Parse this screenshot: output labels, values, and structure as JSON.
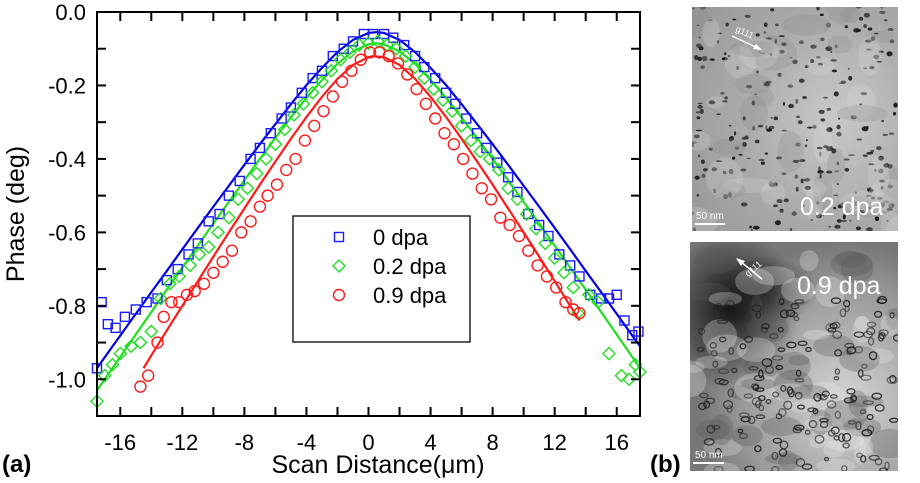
{
  "panel_labels": {
    "a": "(a)",
    "b": "(b)"
  },
  "chart_data": {
    "type": "scatter",
    "xlabel": "Scan Distance(μm)",
    "ylabel": "Phase (deg)",
    "xlim": [
      -17.5,
      17.5
    ],
    "ylim": [
      -1.1,
      0.0
    ],
    "xticks": [
      -16,
      -12,
      -8,
      -4,
      0,
      4,
      8,
      12,
      16
    ],
    "xtick_labels": [
      "-16",
      "-12",
      "-8",
      "-4",
      "0",
      "4",
      "8",
      "12",
      "16"
    ],
    "yticks": [
      0.0,
      -0.2,
      -0.4,
      -0.6,
      -0.8,
      -1.0
    ],
    "ytick_labels": [
      "0.0",
      "-0.2",
      "-0.4",
      "-0.6",
      "-0.8",
      "-1.0"
    ],
    "grid": false,
    "legend_position": "center",
    "series": [
      {
        "name": "0 dpa",
        "marker": "square",
        "color": "#1a1aff",
        "fit_color": "#0000e0",
        "x": [
          -17.5,
          -17.2,
          -16.8,
          -16.3,
          -15.7,
          -15,
          -14.3,
          -13.6,
          -13,
          -12.3,
          -11.6,
          -11,
          -10.3,
          -9.6,
          -9,
          -8.3,
          -7.6,
          -7,
          -6.3,
          -5.6,
          -5,
          -4.3,
          -3.6,
          -3,
          -2.3,
          -1.6,
          -1,
          -0.3,
          0.3,
          1,
          1.6,
          2.3,
          3,
          3.6,
          4.3,
          5,
          5.6,
          6.3,
          7,
          7.6,
          8.3,
          9,
          9.6,
          10.3,
          11,
          11.6,
          12.3,
          13,
          13.6,
          14.3,
          15,
          15.5,
          16,
          16.5,
          17,
          17.4
        ],
        "y": [
          -0.97,
          -0.79,
          -0.85,
          -0.86,
          -0.83,
          -0.81,
          -0.79,
          -0.78,
          -0.73,
          -0.7,
          -0.66,
          -0.63,
          -0.57,
          -0.55,
          -0.5,
          -0.46,
          -0.4,
          -0.37,
          -0.33,
          -0.29,
          -0.26,
          -0.22,
          -0.18,
          -0.16,
          -0.12,
          -0.1,
          -0.08,
          -0.06,
          -0.06,
          -0.06,
          -0.07,
          -0.09,
          -0.12,
          -0.15,
          -0.18,
          -0.22,
          -0.25,
          -0.29,
          -0.33,
          -0.37,
          -0.41,
          -0.45,
          -0.49,
          -0.55,
          -0.58,
          -0.61,
          -0.66,
          -0.69,
          -0.72,
          -0.77,
          -0.78,
          -0.78,
          -0.77,
          -0.84,
          -0.88,
          -0.87
        ],
        "fit_x": [
          -17.5,
          -17,
          -16,
          -15,
          -14,
          -13,
          -12,
          -11,
          -10,
          -9,
          -8,
          -7,
          -6,
          -5,
          -4,
          -3,
          -2,
          -1,
          0,
          0.5,
          1,
          2,
          3,
          4,
          5,
          6,
          7,
          8,
          9,
          10,
          11,
          12,
          13,
          14,
          15,
          16,
          17,
          17.5
        ],
        "fit_y": [
          -0.97,
          -0.94,
          -0.881,
          -0.822,
          -0.763,
          -0.705,
          -0.646,
          -0.588,
          -0.53,
          -0.473,
          -0.416,
          -0.36,
          -0.305,
          -0.251,
          -0.199,
          -0.152,
          -0.109,
          -0.076,
          -0.057,
          -0.055,
          -0.057,
          -0.076,
          -0.109,
          -0.152,
          -0.199,
          -0.251,
          -0.305,
          -0.36,
          -0.416,
          -0.473,
          -0.53,
          -0.588,
          -0.646,
          -0.705,
          -0.763,
          -0.822,
          -0.881,
          -0.91
        ]
      },
      {
        "name": "0.2 dpa",
        "marker": "diamond",
        "color": "#22dd22",
        "fit_color": "#22dd22",
        "x": [
          -17.5,
          -17,
          -16.5,
          -16,
          -15.3,
          -14.7,
          -14,
          -13.4,
          -12.8,
          -12.2,
          -11.5,
          -10.9,
          -10.3,
          -9.7,
          -9,
          -8.4,
          -7.8,
          -7.2,
          -6.6,
          -6,
          -5.4,
          -4.8,
          -4.2,
          -3.6,
          -3,
          -2.4,
          -1.8,
          -1.2,
          -0.6,
          0,
          0.6,
          1.2,
          1.8,
          2.4,
          3,
          3.6,
          4.2,
          4.8,
          5.4,
          6,
          6.6,
          7.2,
          7.8,
          8.4,
          9,
          9.6,
          10.2,
          10.8,
          11.4,
          12,
          12.6,
          13.2,
          13.5,
          14.2,
          14.8,
          15.5,
          16.3,
          16.8,
          17.2,
          17.5
        ],
        "y": [
          -1.06,
          -0.99,
          -0.96,
          -0.93,
          -0.91,
          -0.9,
          -0.87,
          -0.78,
          -0.74,
          -0.72,
          -0.69,
          -0.66,
          -0.64,
          -0.6,
          -0.56,
          -0.51,
          -0.48,
          -0.44,
          -0.4,
          -0.36,
          -0.32,
          -0.28,
          -0.25,
          -0.22,
          -0.19,
          -0.16,
          -0.13,
          -0.11,
          -0.09,
          -0.085,
          -0.08,
          -0.09,
          -0.1,
          -0.12,
          -0.15,
          -0.18,
          -0.21,
          -0.24,
          -0.27,
          -0.31,
          -0.35,
          -0.38,
          -0.4,
          -0.43,
          -0.48,
          -0.51,
          -0.55,
          -0.59,
          -0.63,
          -0.67,
          -0.71,
          -0.75,
          -0.82,
          -0.77,
          -0.79,
          -0.93,
          -0.99,
          -1.0,
          -0.96,
          -0.98
        ],
        "fit_x": [
          -17.5,
          -17,
          -16,
          -15,
          -14,
          -13,
          -12,
          -11,
          -10,
          -9,
          -8,
          -7,
          -6,
          -5,
          -4,
          -3,
          -2,
          -1,
          0,
          0.5,
          1,
          2,
          3,
          4,
          5,
          6,
          7,
          8,
          9,
          10,
          11,
          12,
          13,
          14,
          15,
          16,
          17,
          17.5
        ],
        "fit_y": [
          -1.03,
          -1.0,
          -0.939,
          -0.878,
          -0.817,
          -0.756,
          -0.696,
          -0.636,
          -0.576,
          -0.517,
          -0.458,
          -0.4,
          -0.343,
          -0.287,
          -0.234,
          -0.185,
          -0.141,
          -0.107,
          -0.088,
          -0.085,
          -0.088,
          -0.107,
          -0.141,
          -0.185,
          -0.234,
          -0.287,
          -0.343,
          -0.4,
          -0.458,
          -0.517,
          -0.576,
          -0.636,
          -0.696,
          -0.756,
          -0.817,
          -0.878,
          -0.939,
          -0.97
        ]
      },
      {
        "name": "0.9 dpa",
        "marker": "circle",
        "color": "#ff1a1a",
        "fit_color": "#ff1a1a",
        "x": [
          -14.7,
          -14.2,
          -13.6,
          -13.2,
          -12.7,
          -12.2,
          -11.7,
          -11.2,
          -10.6,
          -10,
          -9.4,
          -8.8,
          -8.2,
          -7.6,
          -7,
          -6.5,
          -5.9,
          -5.3,
          -4.7,
          -4.1,
          -3.5,
          -2.9,
          -2.3,
          -1.7,
          -1.1,
          -0.5,
          0.1,
          0.7,
          1.3,
          1.9,
          2.5,
          3.1,
          3.7,
          4.3,
          4.9,
          5.5,
          6.1,
          6.7,
          7.3,
          7.9,
          8.5,
          9.1,
          9.7,
          10.3,
          10.9,
          11.5,
          12.1,
          12.7,
          13.2,
          13.6
        ],
        "y": [
          -1.02,
          -0.99,
          -0.9,
          -0.83,
          -0.79,
          -0.79,
          -0.77,
          -0.76,
          -0.74,
          -0.71,
          -0.68,
          -0.65,
          -0.6,
          -0.57,
          -0.53,
          -0.5,
          -0.47,
          -0.43,
          -0.4,
          -0.35,
          -0.31,
          -0.27,
          -0.23,
          -0.19,
          -0.16,
          -0.13,
          -0.11,
          -0.11,
          -0.12,
          -0.14,
          -0.17,
          -0.21,
          -0.25,
          -0.29,
          -0.33,
          -0.36,
          -0.4,
          -0.44,
          -0.48,
          -0.51,
          -0.56,
          -0.58,
          -0.61,
          -0.65,
          -0.69,
          -0.72,
          -0.75,
          -0.79,
          -0.81,
          -0.82
        ],
        "fit_x": [
          -14.5,
          -14,
          -13,
          -12,
          -11,
          -10,
          -9,
          -8,
          -7,
          -6,
          -5,
          -4,
          -3,
          -2,
          -1,
          0,
          0.3,
          1,
          2,
          3,
          4,
          5,
          6,
          7,
          8,
          9,
          10,
          11,
          12,
          13,
          13.6
        ],
        "fit_y": [
          -0.97,
          -0.935,
          -0.867,
          -0.8,
          -0.733,
          -0.666,
          -0.6,
          -0.535,
          -0.47,
          -0.407,
          -0.345,
          -0.286,
          -0.231,
          -0.182,
          -0.144,
          -0.123,
          -0.12,
          -0.123,
          -0.144,
          -0.182,
          -0.231,
          -0.286,
          -0.345,
          -0.407,
          -0.47,
          -0.535,
          -0.6,
          -0.666,
          -0.733,
          -0.8,
          -0.84
        ]
      }
    ]
  },
  "micrographs": [
    {
      "label": "0.2 dpa",
      "scale_bar": "50 nm",
      "vector": "g111",
      "tone": "light"
    },
    {
      "label": "0.9 dpa",
      "scale_bar": "50 nm",
      "vector": "g111",
      "tone": "dark"
    }
  ]
}
